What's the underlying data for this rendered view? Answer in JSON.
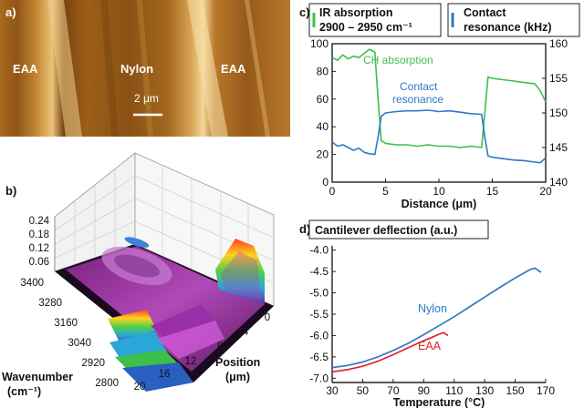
{
  "panels": {
    "a": {
      "label": "a)",
      "regions": [
        "EAA",
        "Nylon",
        "EAA"
      ],
      "scalebar": "2 μm"
    },
    "b": {
      "label": "b)",
      "zticks": [
        "0.24",
        "0.18",
        "0.12",
        "0.06"
      ],
      "yticks": [
        "3400",
        "3280",
        "3160",
        "3040",
        "2920",
        "2800"
      ],
      "xticks": [
        "0",
        "4",
        "8",
        "12",
        "16",
        "20"
      ],
      "ylabel_line1": "Wavenumber",
      "ylabel_line2": "(cm⁻¹)",
      "xlabel_line1": "Position",
      "xlabel_line2": "(μm)"
    },
    "c": {
      "label": "c)",
      "legend_left_line1": "IR absorption",
      "legend_left_line2": "2900 – 2950 cm⁻¹",
      "legend_right_line1": "Contact",
      "legend_right_line2": "resonance (kHz)",
      "anno_ch": "CH absorption",
      "anno_contact_line1": "Contact",
      "anno_contact_line2": "resonance"
    },
    "d": {
      "label": "d)",
      "title": "Cantilever deflection (a.u.)",
      "anno_nylon": "Nylon",
      "anno_eaa": "EAA"
    }
  },
  "colors": {
    "green": "#3dbf4a",
    "blue": "#2f78c4",
    "red": "#e02424",
    "frame": "#222222"
  },
  "chart_data": [
    {
      "id": "c",
      "type": "line",
      "xlabel": "Distance (μm)",
      "x_ticks": [
        0,
        5,
        10,
        15,
        20
      ],
      "xlim": [
        0,
        20
      ],
      "y_left_ticks": [
        0,
        20,
        40,
        60,
        80,
        100
      ],
      "ylim_left": [
        0,
        100
      ],
      "y_right_ticks": [
        140,
        145,
        150,
        155,
        160
      ],
      "ylim_right": [
        140,
        160
      ],
      "series": [
        {
          "name": "IR absorption 2900 – 2950 cm⁻¹",
          "axis": "left",
          "color": "#3dbf4a",
          "x": [
            0,
            0.5,
            1,
            1.5,
            2,
            2.5,
            3,
            3.5,
            4,
            4.3,
            4.6,
            5,
            6,
            7,
            8,
            9,
            10,
            11,
            12,
            13,
            14,
            14.3,
            14.6,
            15,
            16,
            17,
            18,
            19,
            19.5,
            20
          ],
          "y": [
            90,
            88,
            92,
            89,
            91,
            90,
            93,
            96,
            94,
            60,
            30,
            28,
            27,
            27,
            26,
            27,
            26,
            26,
            25,
            26,
            25,
            50,
            76,
            75,
            74,
            73,
            72,
            71,
            66,
            58
          ]
        },
        {
          "name": "Contact resonance",
          "axis": "right",
          "color": "#2f78c4",
          "x": [
            0,
            0.5,
            1,
            1.5,
            2,
            2.5,
            3,
            3.5,
            4,
            4.3,
            4.6,
            5,
            6,
            7,
            8,
            9,
            10,
            11,
            12,
            13,
            14,
            14.3,
            14.6,
            15,
            16,
            17,
            18,
            19,
            19.5,
            20
          ],
          "y": [
            145.8,
            145.2,
            145.4,
            145.0,
            144.6,
            144.9,
            144.3,
            144.1,
            144.0,
            146.5,
            149.5,
            150.0,
            150.2,
            150.3,
            150.3,
            150.4,
            150.2,
            150.3,
            150.1,
            149.9,
            149.8,
            146.5,
            143.8,
            143.6,
            143.4,
            143.2,
            143.1,
            142.9,
            142.8,
            143.5
          ]
        }
      ]
    },
    {
      "id": "d",
      "type": "line",
      "xlabel": "Temperature (°C)",
      "x_ticks": [
        30,
        50,
        70,
        90,
        110,
        130,
        150,
        170
      ],
      "xlim": [
        30,
        170
      ],
      "y_ticks": [
        -4.0,
        -4.5,
        -5.0,
        -5.5,
        -6.0,
        -6.5,
        -7.0
      ],
      "ylim": [
        -7.1,
        -3.9
      ],
      "series": [
        {
          "name": "Nylon",
          "color": "#2f78c4",
          "x": [
            30,
            40,
            50,
            60,
            70,
            80,
            90,
            100,
            110,
            120,
            130,
            140,
            150,
            160,
            163,
            167
          ],
          "y": [
            -6.75,
            -6.7,
            -6.62,
            -6.5,
            -6.35,
            -6.18,
            -5.98,
            -5.77,
            -5.56,
            -5.33,
            -5.1,
            -4.87,
            -4.65,
            -4.45,
            -4.42,
            -4.52
          ]
        },
        {
          "name": "EAA",
          "color": "#e02424",
          "x": [
            30,
            40,
            50,
            60,
            70,
            80,
            90,
            95,
            100,
            103,
            106
          ],
          "y": [
            -6.85,
            -6.8,
            -6.72,
            -6.6,
            -6.45,
            -6.28,
            -6.12,
            -6.05,
            -5.97,
            -5.93,
            -6.0
          ]
        }
      ]
    }
  ]
}
